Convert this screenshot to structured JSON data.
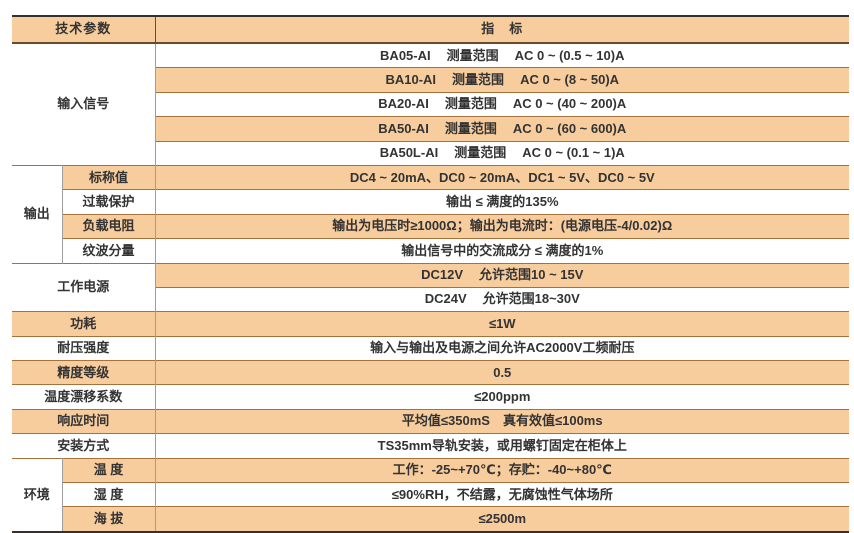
{
  "colors": {
    "row_orange": "#f8cd9e",
    "row_white": "#ffffff",
    "border_dark": "#35302b",
    "border_brown": "#a5713d",
    "border_header": "#6e4a28",
    "border_gray": "#9e9e9e",
    "text": "#333333"
  },
  "header": {
    "param": "技术参数",
    "indicator": "指　标"
  },
  "input_signal": {
    "label": "输入信号",
    "rows": [
      {
        "model": "BA05-AI",
        "range_label": "测量范围",
        "range": "AC 0 ~ (0.5 ~ 10)A"
      },
      {
        "model": "BA10-AI",
        "range_label": "测量范围",
        "range": "AC 0 ~ (8 ~ 50)A"
      },
      {
        "model": "BA20-AI",
        "range_label": "测量范围",
        "range": "AC 0 ~ (40 ~ 200)A"
      },
      {
        "model": "BA50-AI",
        "range_label": "测量范围",
        "range": "AC 0 ~ (60 ~ 600)A"
      },
      {
        "model": "BA50L-AI",
        "range_label": "测量范围",
        "range": "AC 0 ~ (0.1 ~ 1)A"
      }
    ]
  },
  "output": {
    "label": "输出",
    "rows": [
      {
        "name": "标称值",
        "value": "DC4 ~ 20mA、DC0 ~ 20mA、DC1 ~ 5V、DC0 ~ 5V"
      },
      {
        "name": "过载保护",
        "value": "输出 ≤ 满度的135%"
      },
      {
        "name": "负载电阻",
        "value": "输出为电压时≥1000Ω；输出为电流时：(电源电压-4/0.02)Ω"
      },
      {
        "name": "纹波分量",
        "value": "输出信号中的交流成分 ≤ 满度的1%"
      }
    ]
  },
  "power_supply": {
    "label": "工作电源",
    "rows": [
      {
        "source": "DC12V",
        "range": "允许范围10 ~ 15V"
      },
      {
        "source": "DC24V",
        "range": "允许范围18~30V"
      }
    ]
  },
  "simple_rows": [
    {
      "name": "功耗",
      "value": "≤1W"
    },
    {
      "name": "耐压强度",
      "value": "输入与输出及电源之间允许AC2000V工频耐压"
    },
    {
      "name": "精度等级",
      "value": "0.5"
    },
    {
      "name": "温度漂移系数",
      "value": "≤200ppm"
    },
    {
      "name": "响应时间",
      "value": "平均值≤350mS　真有效值≤100ms"
    },
    {
      "name": "安装方式",
      "value": "TS35mm导轨安装，或用螺钉固定在柜体上"
    }
  ],
  "environment": {
    "label": "环境",
    "rows": [
      {
        "name": "温 度",
        "value": "工作：-25~+70℃；存贮：-40~+80℃"
      },
      {
        "name": "湿 度",
        "value": "≤90%RH，不结露，无腐蚀性气体场所"
      },
      {
        "name": "海 拔",
        "value": "≤2500m"
      }
    ]
  }
}
